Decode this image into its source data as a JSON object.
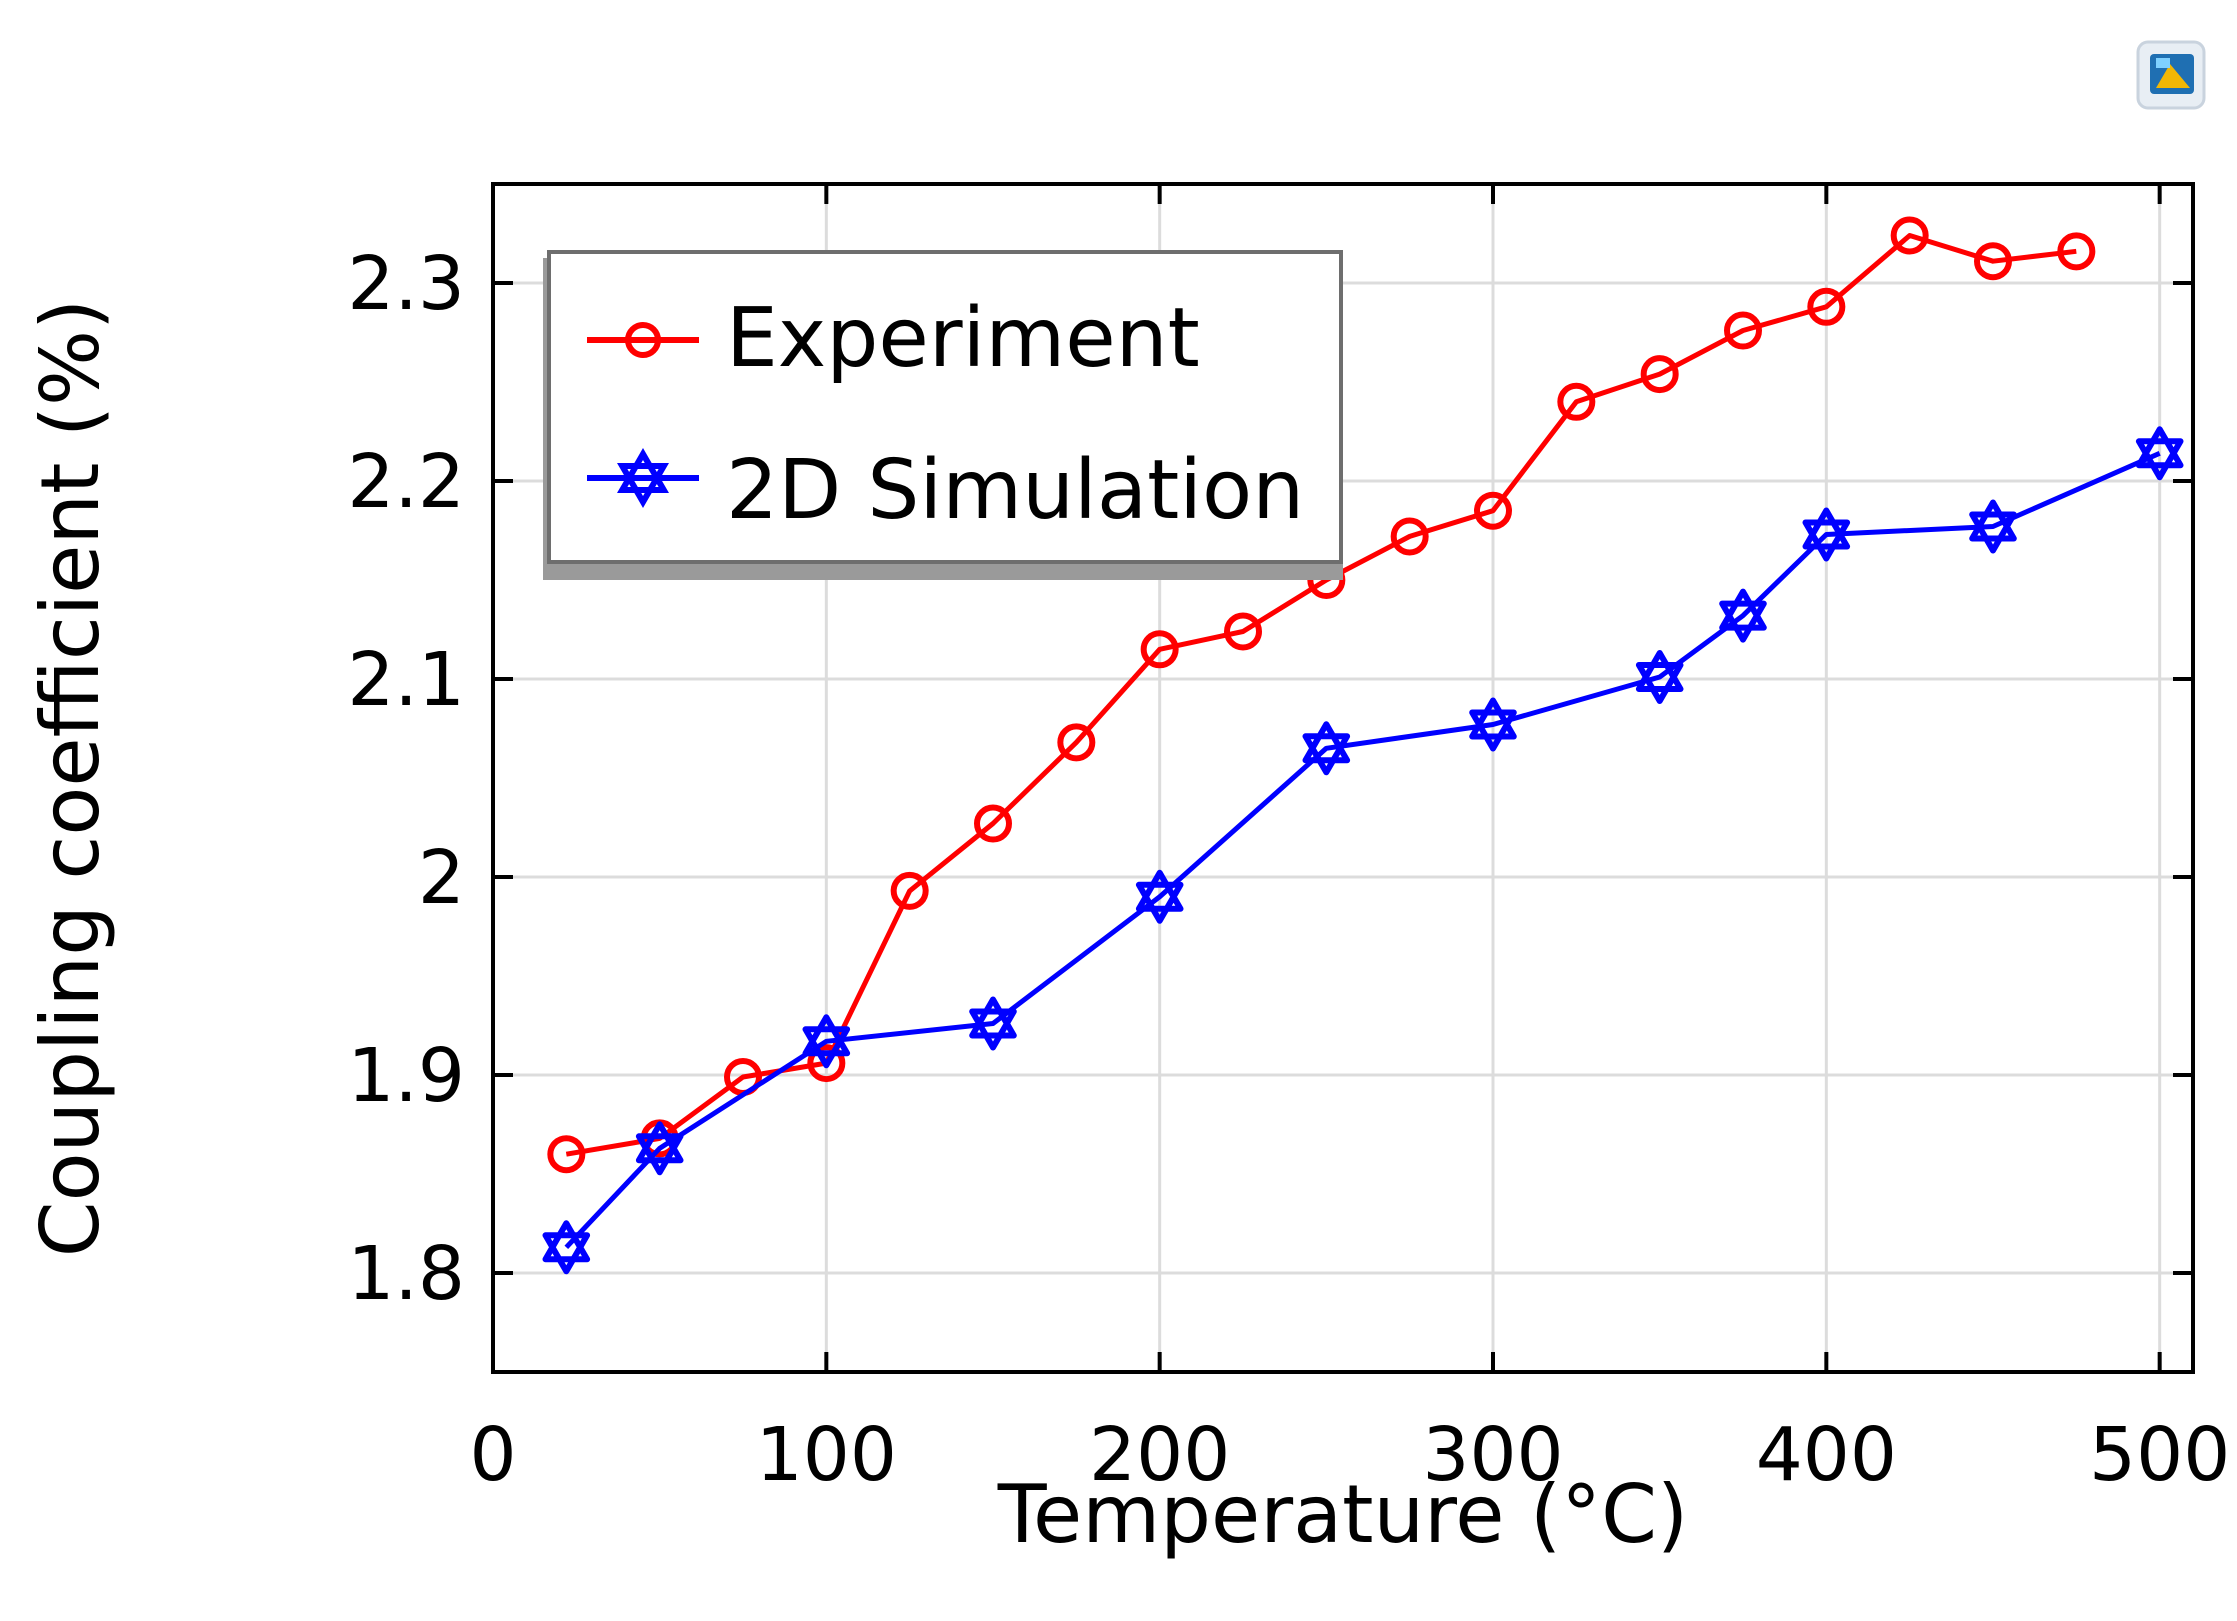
{
  "chart_data": {
    "type": "line",
    "title": "",
    "xlabel": "Temperature (°C)",
    "ylabel": "Coupling coefficient (%)",
    "xlim": [
      0,
      510
    ],
    "ylim": [
      1.75,
      2.35
    ],
    "xticks": [
      0,
      100,
      200,
      300,
      400,
      500
    ],
    "xtick_labels": [
      "0",
      "100",
      "200",
      "300",
      "400",
      "500"
    ],
    "yticks": [
      1.8,
      1.9,
      2.0,
      2.1,
      2.2,
      2.3
    ],
    "ytick_labels": [
      "1.8",
      "1.9",
      "2",
      "2.1",
      "2.2",
      "2.3"
    ],
    "grid": true,
    "legend_position": "top-left",
    "series": [
      {
        "name": "Experiment",
        "color": "#ff0000",
        "marker": "circle",
        "x": [
          22,
          50,
          75,
          100,
          125,
          150,
          175,
          200,
          225,
          250,
          275,
          300,
          325,
          350,
          375,
          400,
          425,
          450,
          475
        ],
        "y": [
          1.86,
          1.868,
          1.899,
          1.906,
          1.993,
          2.027,
          2.068,
          2.115,
          2.124,
          2.15,
          2.172,
          2.185,
          2.24,
          2.254,
          2.276,
          2.288,
          2.324,
          2.311,
          2.316
        ]
      },
      {
        "name": "2D Simulation",
        "color": "#0000ff",
        "marker": "star",
        "x": [
          22,
          50,
          100,
          150,
          200,
          250,
          300,
          350,
          375,
          400,
          450,
          500
        ],
        "y": [
          1.813,
          1.863,
          1.917,
          1.926,
          1.99,
          2.065,
          2.077,
          2.101,
          2.132,
          2.173,
          2.177,
          2.214
        ]
      }
    ]
  },
  "corner_icon": "app-logo-icon"
}
